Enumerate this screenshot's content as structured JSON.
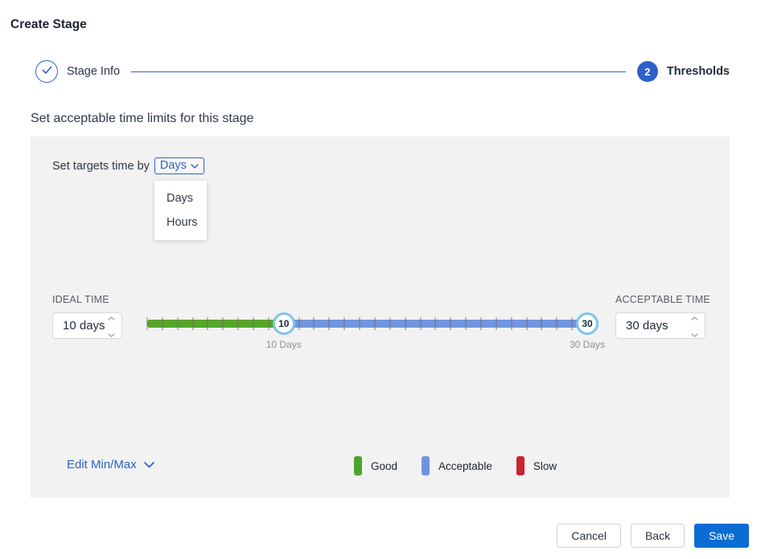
{
  "page": {
    "title": "Create Stage"
  },
  "stepper": {
    "steps": [
      {
        "label": "Stage Info",
        "state": "completed"
      },
      {
        "number": "2",
        "label": "Thresholds",
        "state": "active"
      }
    ]
  },
  "heading": "Set acceptable time limits for this stage",
  "panel": {
    "target_label": "Set targets time by",
    "target_select": {
      "value": "Days",
      "options": [
        "Days",
        "Hours"
      ]
    },
    "ideal": {
      "label": "IDEAL TIME",
      "value": "10 days"
    },
    "acceptable": {
      "label": "ACCEPTABLE TIME",
      "value": "30 days"
    },
    "slider": {
      "min": 1,
      "max": 30,
      "ideal_value": 10,
      "acceptable_value": 30,
      "ideal_handle_text": "10",
      "acceptable_handle_text": "30",
      "ideal_tick_label": "10 Days",
      "acceptable_tick_label": "30 Days",
      "colors": {
        "good": "#57a52b",
        "acceptable": "#7295e0"
      }
    },
    "edit_minmax_label": "Edit Min/Max",
    "legend": [
      {
        "label": "Good",
        "color": "#4ea32e"
      },
      {
        "label": "Acceptable",
        "color": "#7093df"
      },
      {
        "label": "Slow",
        "color": "#c9242f"
      }
    ]
  },
  "footer": {
    "cancel": "Cancel",
    "back": "Back",
    "save": "Save"
  }
}
